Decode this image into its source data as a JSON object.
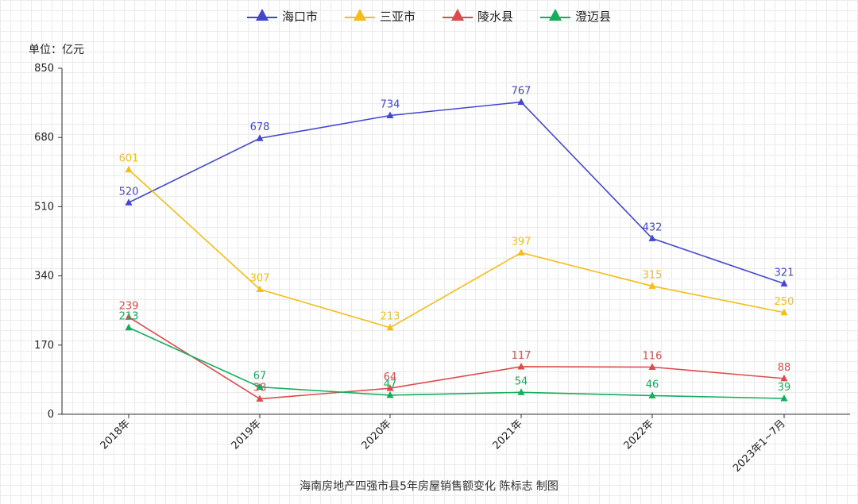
{
  "chart_data": {
    "type": "line",
    "categories": [
      "2018年",
      "2019年",
      "2020年",
      "2021年",
      "2022年",
      "2023年1~7月"
    ],
    "ylabel": "单位：亿元",
    "caption": "海南房地产四强市县5年房屋销售额变化    陈标志 制图",
    "ylim": [
      0,
      850
    ],
    "yticks": [
      "0",
      "170",
      "340",
      "510",
      "680",
      "850"
    ],
    "legend_position": "top",
    "marker": "triangle",
    "series": [
      {
        "name": "海口市",
        "color": "#4347cf",
        "values": [
          520,
          678,
          734,
          767,
          432,
          321
        ],
        "labels": [
          "520",
          "678",
          "734",
          "767",
          "432",
          "321"
        ]
      },
      {
        "name": "三亚市",
        "color": "#f5bd1a",
        "values": [
          601,
          307,
          213,
          397,
          315,
          250
        ],
        "labels": [
          "601",
          "307",
          "213",
          "397",
          "315",
          "250"
        ]
      },
      {
        "name": "陵水县",
        "color": "#dd4a4c",
        "values": [
          239,
          38,
          64,
          117,
          116,
          88
        ],
        "labels": [
          "239",
          "38",
          "64",
          "117",
          "116",
          "88"
        ]
      },
      {
        "name": "澄迈县",
        "color": "#14ad5c",
        "values": [
          213,
          67,
          47,
          54,
          46,
          39
        ],
        "labels": [
          "213",
          "67",
          "47",
          "54",
          "46",
          "39"
        ]
      }
    ]
  }
}
